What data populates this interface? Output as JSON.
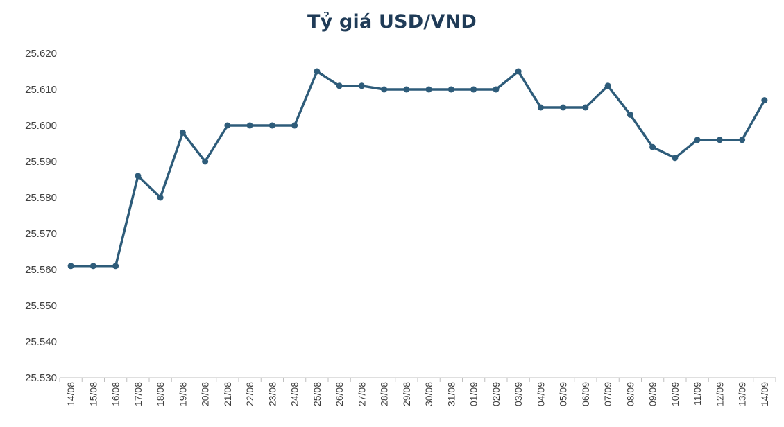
{
  "chart_data": {
    "type": "line",
    "title": "Tỷ giá USD/VND",
    "xlabel": "",
    "ylabel": "",
    "categories": [
      "14/08",
      "15/08",
      "16/08",
      "17/08",
      "18/08",
      "19/08",
      "20/08",
      "21/08",
      "22/08",
      "23/08",
      "24/08",
      "25/08",
      "26/08",
      "27/08",
      "28/08",
      "29/08",
      "30/08",
      "31/08",
      "01/09",
      "02/09",
      "03/09",
      "04/09",
      "05/09",
      "06/09",
      "07/09",
      "08/09",
      "09/09",
      "10/09",
      "11/09",
      "12/09",
      "13/09",
      "14/09"
    ],
    "series": [
      {
        "values": [
          25561,
          25561,
          25561,
          25586,
          25580,
          25598,
          25590,
          25600,
          25600,
          25600,
          25600,
          25615,
          25611,
          25611,
          25610,
          25610,
          25610,
          25610,
          25610,
          25610,
          25615,
          25605,
          25605,
          25605,
          25611,
          25603,
          25594,
          25591,
          25596,
          25596,
          25596,
          25607
        ]
      }
    ],
    "ylim": [
      25530,
      25620
    ],
    "yticks": [
      25530,
      25540,
      25550,
      25560,
      25570,
      25580,
      25590,
      25600,
      25610,
      25620
    ],
    "ytick_labels": [
      "25.530",
      "25.540",
      "25.550",
      "25.560",
      "25.570",
      "25.580",
      "25.590",
      "25.600",
      "25.610",
      "25.620"
    ],
    "grid": false,
    "legend": "none",
    "colors": {
      "line": "#2e5c7a",
      "title": "#1f3b57",
      "axis": "#bfbfbf",
      "tick_text": "#404040"
    }
  }
}
